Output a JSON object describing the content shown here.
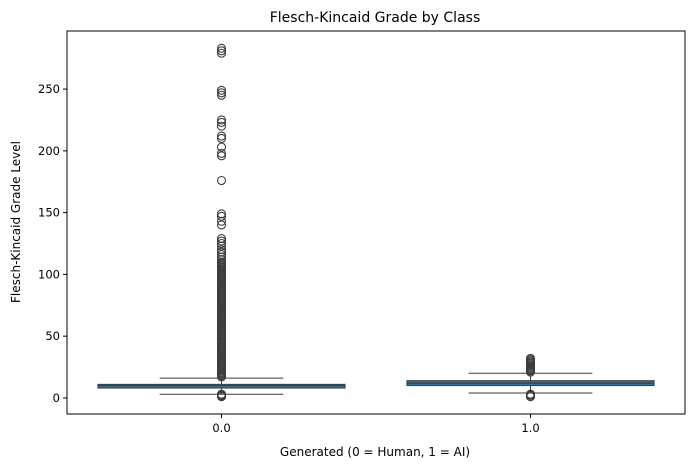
{
  "chart_data": {
    "type": "box",
    "title": "Flesch-Kincaid Grade by Class",
    "xlabel": "Generated (0 = Human, 1 = AI)",
    "ylabel": "Flesch-Kincaid Grade Level",
    "categories": [
      "0.0",
      "1.0"
    ],
    "ylim": [
      -13,
      297
    ],
    "yticks": [
      "0",
      "50",
      "100",
      "150",
      "200",
      "250"
    ],
    "grid": false,
    "colors": {
      "box_fill": "#3274a1",
      "line": "#3d3d3d"
    },
    "boxes": [
      {
        "category": "0.0",
        "whisker_low": 3,
        "q1": 8,
        "median": 10,
        "q3": 11,
        "whisker_high": 16,
        "outliers": [
          1,
          1.5,
          2,
          2.5,
          3,
          17,
          18,
          19,
          20,
          21,
          22,
          23,
          24,
          25,
          26,
          27,
          28,
          29,
          30,
          31,
          32,
          33,
          34,
          35,
          36,
          37,
          38,
          39,
          40,
          41,
          42,
          43,
          44,
          45,
          46,
          47,
          48,
          49,
          50,
          51,
          52,
          53,
          54,
          55,
          56,
          57,
          58,
          59,
          60,
          61,
          62,
          63,
          64,
          65,
          66,
          67,
          68,
          69,
          70,
          71,
          72,
          73,
          74,
          75,
          76,
          77,
          78,
          79,
          80,
          81,
          82,
          83,
          84,
          85,
          86,
          87,
          88,
          89,
          90,
          91,
          92,
          93,
          94,
          95,
          96,
          97,
          98,
          99,
          100,
          101,
          102,
          103,
          104,
          105,
          106,
          107,
          108,
          109,
          110,
          112,
          114,
          116,
          118,
          120,
          123,
          125,
          127,
          129,
          140,
          143,
          147,
          149,
          176,
          196,
          198,
          203,
          210,
          212,
          220,
          223,
          225,
          245,
          247,
          249,
          279,
          281,
          283
        ]
      },
      {
        "category": "1.0",
        "whisker_low": 4,
        "q1": 10,
        "median": 12,
        "q3": 14,
        "whisker_high": 20,
        "outliers": [
          1,
          2,
          2.5,
          3,
          21,
          22,
          23,
          24,
          25,
          26,
          27,
          28,
          29,
          30,
          31,
          32
        ]
      }
    ]
  }
}
